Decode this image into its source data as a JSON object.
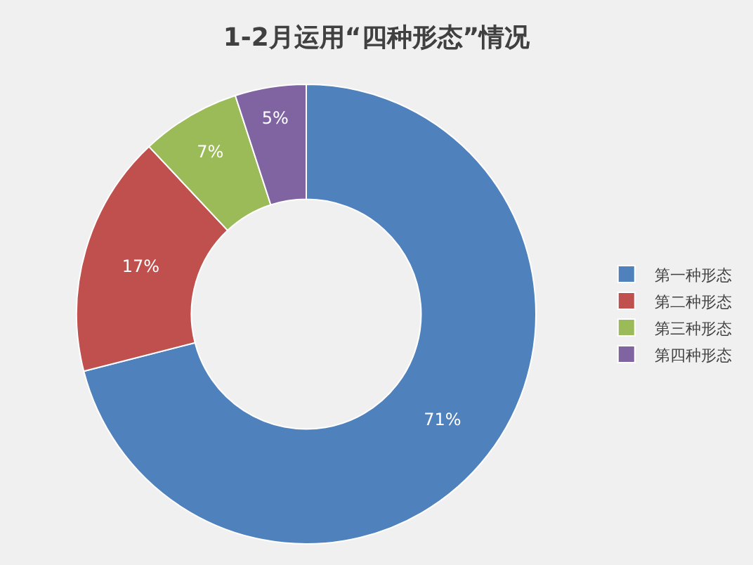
{
  "chart_data": {
    "type": "donut",
    "title": "1-2月运用“四种形态”情况",
    "categories": [
      "第一种形态",
      "第二种形态",
      "第三种形态",
      "第四种形态"
    ],
    "values": [
      71,
      17,
      7,
      5
    ],
    "value_labels": [
      "71%",
      "17%",
      "7%",
      "5%"
    ],
    "colors": [
      "#4f81bd",
      "#c0504d",
      "#9bbb59",
      "#8064a2"
    ],
    "legend": "right"
  }
}
